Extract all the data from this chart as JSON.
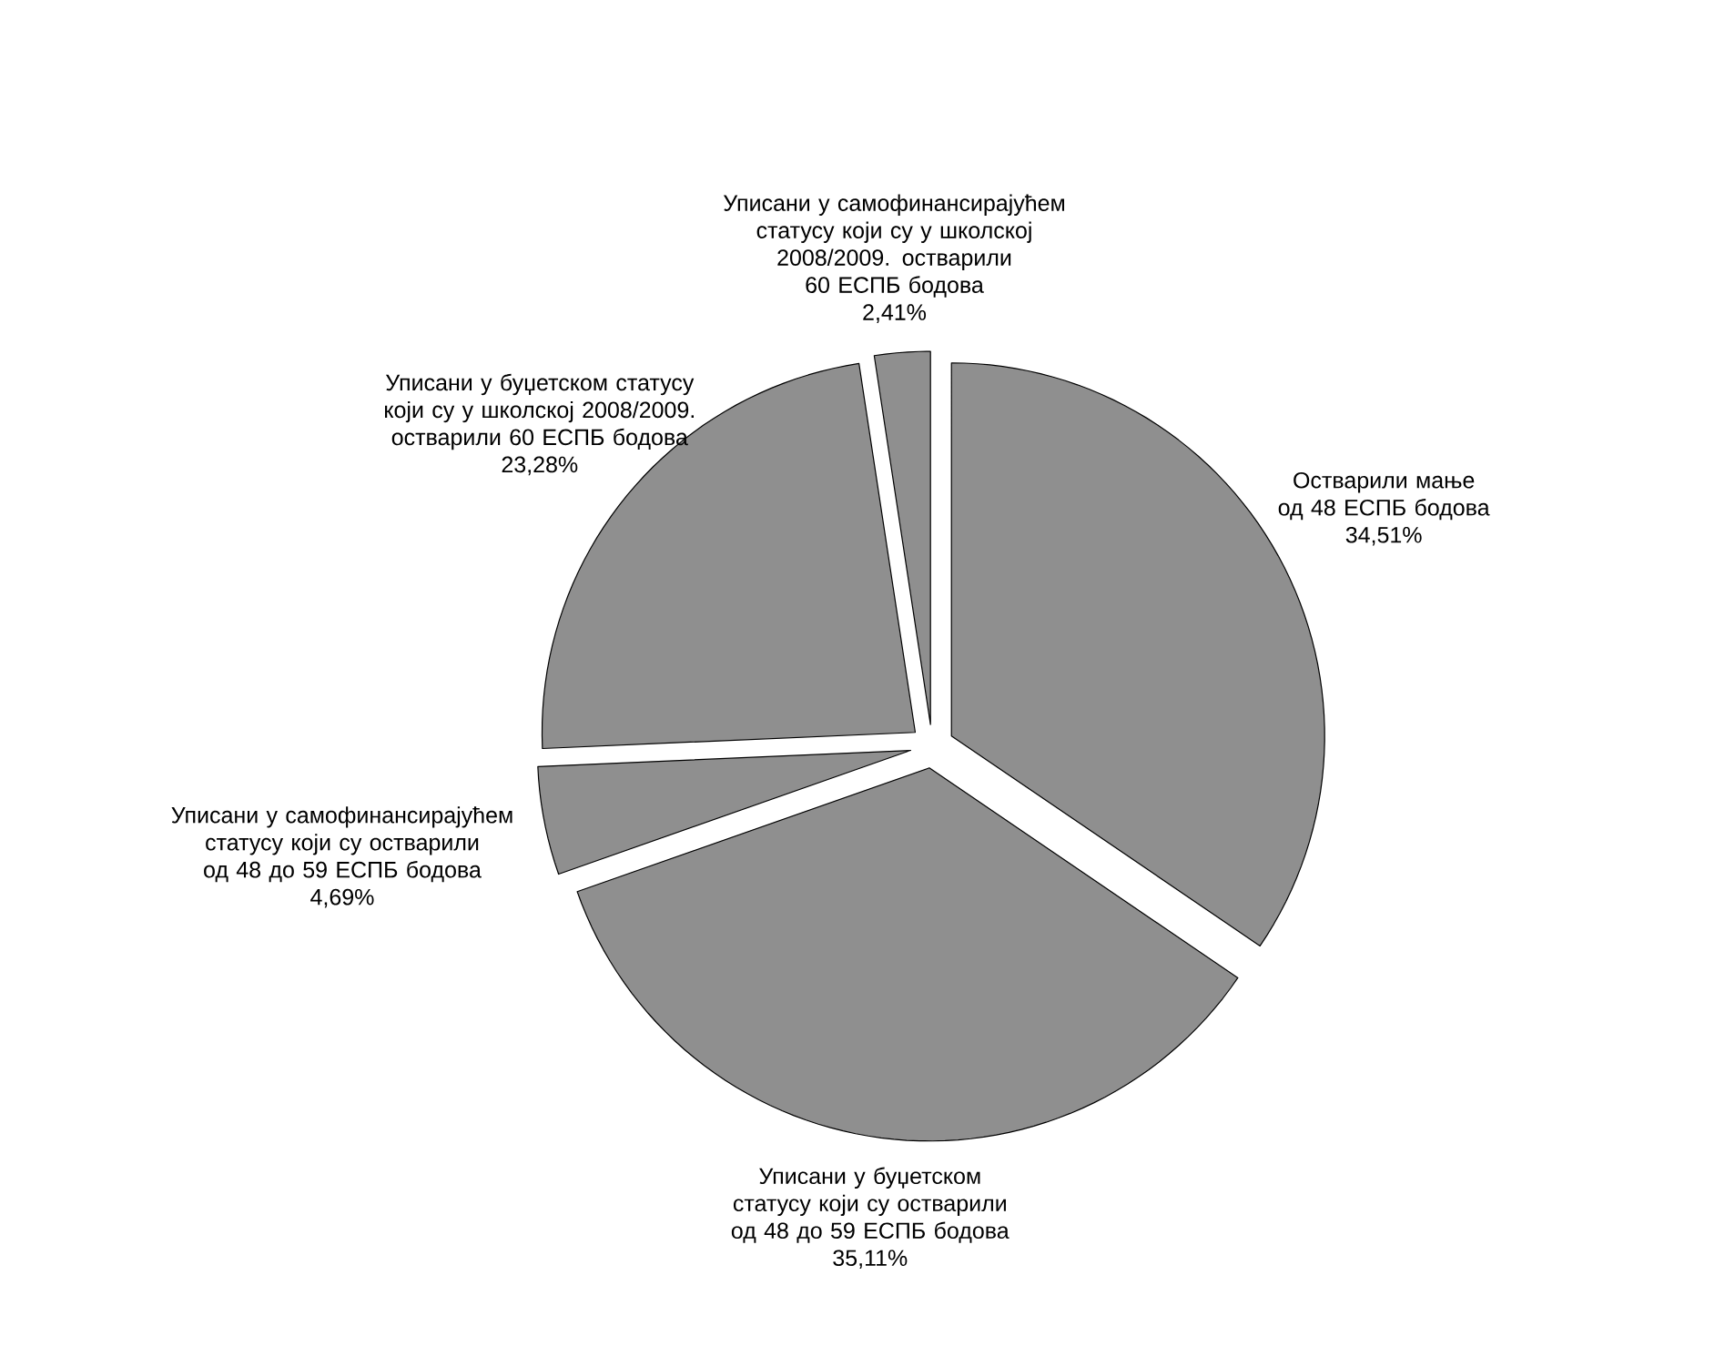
{
  "chart_data": {
    "type": "pie",
    "categories": [
      "Остварили мање од 48 ЕСПБ бодова",
      "Уписани у буџетском статусу који су остварили од 48 до 59 ЕСПБ бодова",
      "Уписани у самофинансирајућем статусу који су остварили од 48 до 59 ЕСПБ бодова",
      "Уписани у буџетском статусу који су у школској 2008/2009. остварили 60 ЕСПБ бодова",
      "Уписани у самофинансирајућем статусу који су у школској 2008/2009. остварили 60 ЕСПБ бодова"
    ],
    "values": [
      34.51,
      35.11,
      4.69,
      23.28,
      2.41
    ],
    "value_labels": [
      "34,51%",
      "35,11%",
      "4,69%",
      "23,28%",
      "2,41%"
    ],
    "colors": [
      "#8f8f8f",
      "#8f8f8f",
      "#8f8f8f",
      "#8f8f8f",
      "#8f8f8f"
    ]
  }
}
